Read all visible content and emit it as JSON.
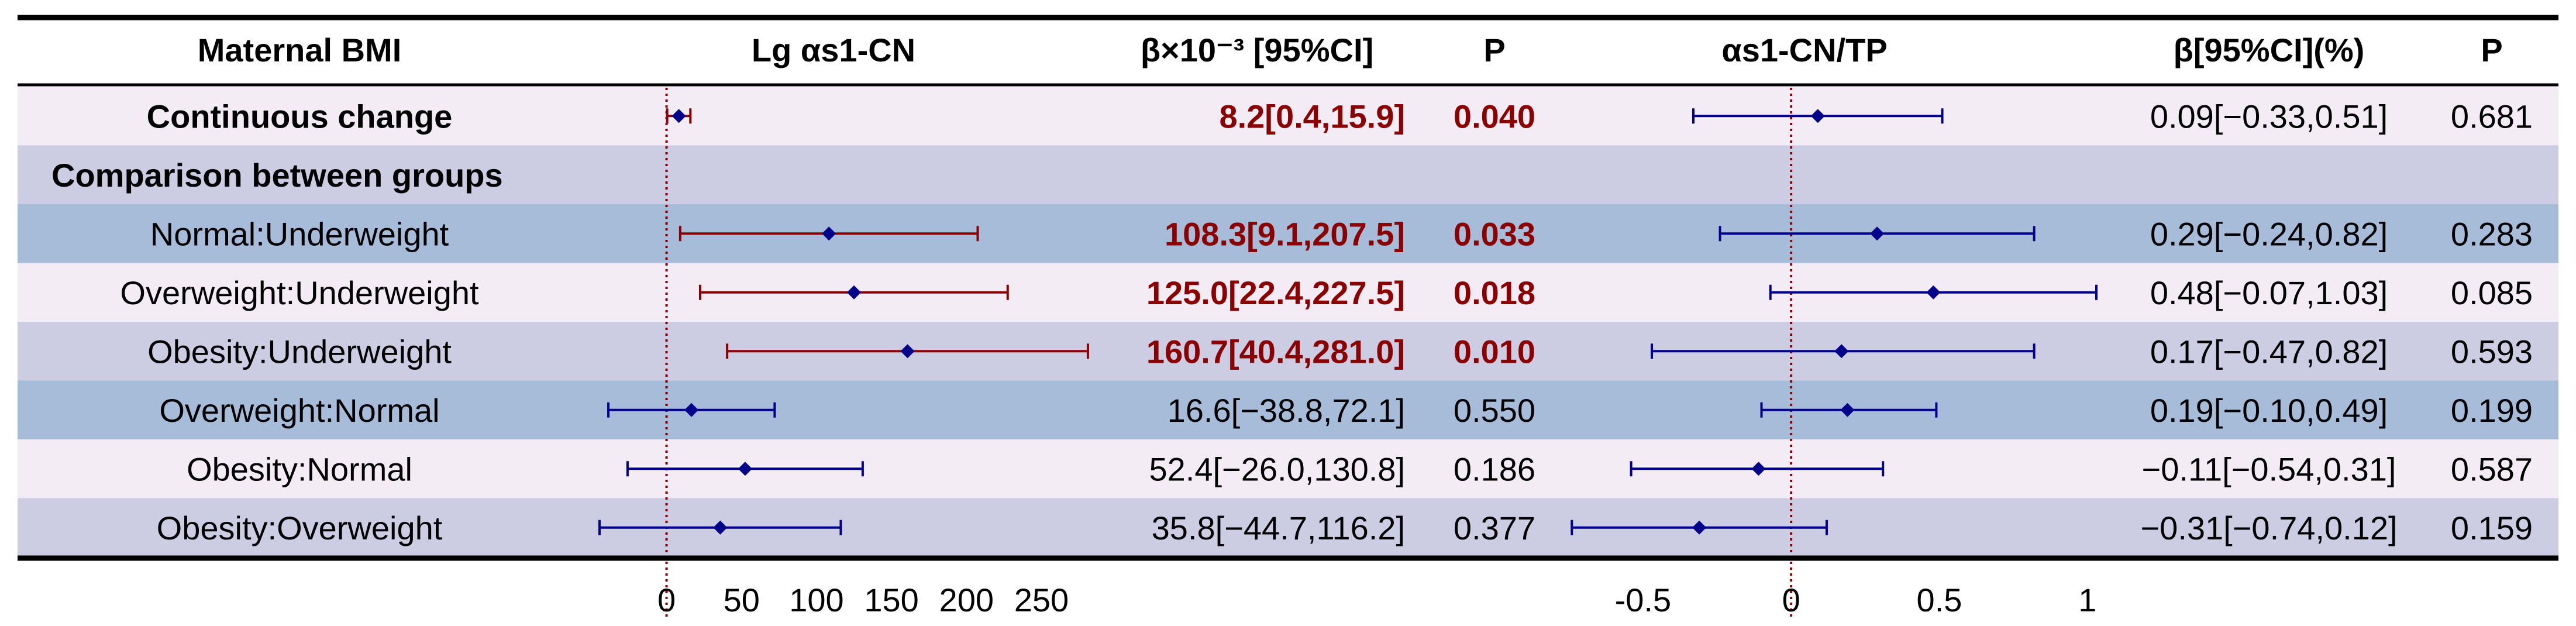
{
  "chart_data": {
    "type": "forest",
    "title": "",
    "columns": {
      "group": "Maternal BMI",
      "plot1": "Lg αs1-CN",
      "beta1": "β×10⁻³ [95%CI]",
      "p1": "P",
      "plot2": "αs1-CN/TP",
      "beta2": "β[95%CI](%)",
      "p2": "P"
    },
    "plot1_axis": {
      "range": [
        -40,
        290
      ],
      "ticks": [
        "0",
        "50",
        "100",
        "150",
        "200",
        "250"
      ],
      "reference": 0
    },
    "plot2_axis": {
      "range": [
        -0.78,
        1.03
      ],
      "ticks": [
        "-0.5",
        "0",
        "0.5",
        "1"
      ],
      "reference": 0
    },
    "colors": {
      "significant": "#8b0000",
      "nonsignificant": "#00008b",
      "reference_line": "#8b0000",
      "row_light": "#f3ecf5",
      "row_mid": "#cccce3",
      "row_dark": "#a6bcd9"
    },
    "rows": [
      {
        "label": "Continuous change",
        "bold": true,
        "shade": "light",
        "lg": {
          "beta": 8.2,
          "lo": 0.4,
          "hi": 15.9,
          "text": "8.2[0.4,15.9]",
          "p": "0.040",
          "sig": true
        },
        "tp": {
          "beta": 0.09,
          "lo": -0.33,
          "hi": 0.51,
          "text": "0.09[−0.33,0.51]",
          "p": "0.681",
          "sig": false
        }
      },
      {
        "label": "Comparison between groups",
        "bold": true,
        "shade": "mid",
        "section": true
      },
      {
        "label": "Normal:Underweight",
        "bold": false,
        "shade": "dark",
        "lg": {
          "beta": 108.3,
          "lo": 9.1,
          "hi": 207.5,
          "text": "108.3[9.1,207.5]",
          "p": "0.033",
          "sig": true
        },
        "tp": {
          "beta": 0.29,
          "lo": -0.24,
          "hi": 0.82,
          "text": "0.29[−0.24,0.82]",
          "p": "0.283",
          "sig": false
        }
      },
      {
        "label": "Overweight:Underweight",
        "bold": false,
        "shade": "light",
        "lg": {
          "beta": 125.0,
          "lo": 22.4,
          "hi": 227.5,
          "text": "125.0[22.4,227.5]",
          "p": "0.018",
          "sig": true
        },
        "tp": {
          "beta": 0.48,
          "lo": -0.07,
          "hi": 1.03,
          "text": "0.48[−0.07,1.03]",
          "p": "0.085",
          "sig": false
        }
      },
      {
        "label": "Obesity:Underweight",
        "bold": false,
        "shade": "mid",
        "lg": {
          "beta": 160.7,
          "lo": 40.4,
          "hi": 281.0,
          "text": "160.7[40.4,281.0]",
          "p": "0.010",
          "sig": true
        },
        "tp": {
          "beta": 0.17,
          "lo": -0.47,
          "hi": 0.82,
          "text": "0.17[−0.47,0.82]",
          "p": "0.593",
          "sig": false
        }
      },
      {
        "label": "Overweight:Normal",
        "bold": false,
        "shade": "dark",
        "lg": {
          "beta": 16.6,
          "lo": -38.8,
          "hi": 72.1,
          "text": "16.6[−38.8,72.1]",
          "p": "0.550",
          "sig": false
        },
        "tp": {
          "beta": 0.19,
          "lo": -0.1,
          "hi": 0.49,
          "text": "0.19[−0.10,0.49]",
          "p": "0.199",
          "sig": false
        }
      },
      {
        "label": "Obesity:Normal",
        "bold": false,
        "shade": "light",
        "lg": {
          "beta": 52.4,
          "lo": -26.0,
          "hi": 130.8,
          "text": "52.4[−26.0,130.8]",
          "p": "0.186",
          "sig": false
        },
        "tp": {
          "beta": -0.11,
          "lo": -0.54,
          "hi": 0.31,
          "text": "−0.11[−0.54,0.31]",
          "p": "0.587",
          "sig": false
        }
      },
      {
        "label": "Obesity:Overweight",
        "bold": false,
        "shade": "mid",
        "lg": {
          "beta": 35.8,
          "lo": -44.7,
          "hi": 116.2,
          "text": "35.8[−44.7,116.2]",
          "p": "0.377",
          "sig": false
        },
        "tp": {
          "beta": -0.31,
          "lo": -0.74,
          "hi": 0.12,
          "text": "−0.31[−0.74,0.12]",
          "p": "0.159",
          "sig": false
        }
      }
    ]
  }
}
